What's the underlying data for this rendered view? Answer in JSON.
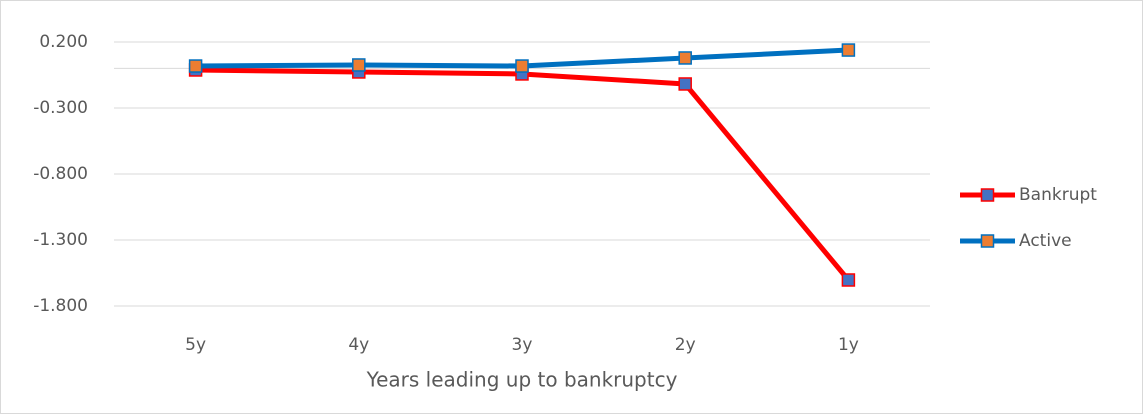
{
  "chart_data": {
    "type": "line",
    "x_label": "Years leading up to bankruptcy",
    "categories": [
      "5y",
      "4y",
      "3y",
      "2y",
      "1y"
    ],
    "series": [
      {
        "name": "Bankrupt",
        "color": "#ff0000",
        "marker_color": "#4472c4",
        "values": [
          -0.012,
          -0.027,
          -0.042,
          -0.118,
          -1.603
        ]
      },
      {
        "name": "Active",
        "color": "#0070c0",
        "marker_color": "#ed7d31",
        "values": [
          0.018,
          0.026,
          0.018,
          0.079,
          0.139
        ]
      }
    ],
    "ylim": [
      -1.8,
      0.2
    ],
    "yticks": [
      {
        "value": 0.2,
        "label": "0.200"
      },
      {
        "value": -0.3,
        "label": "-0.300"
      },
      {
        "value": -0.8,
        "label": "-0.800"
      },
      {
        "value": -1.3,
        "label": "-1.300"
      },
      {
        "value": -1.8,
        "label": "-1.800"
      }
    ],
    "grid": true,
    "legend": "right"
  }
}
